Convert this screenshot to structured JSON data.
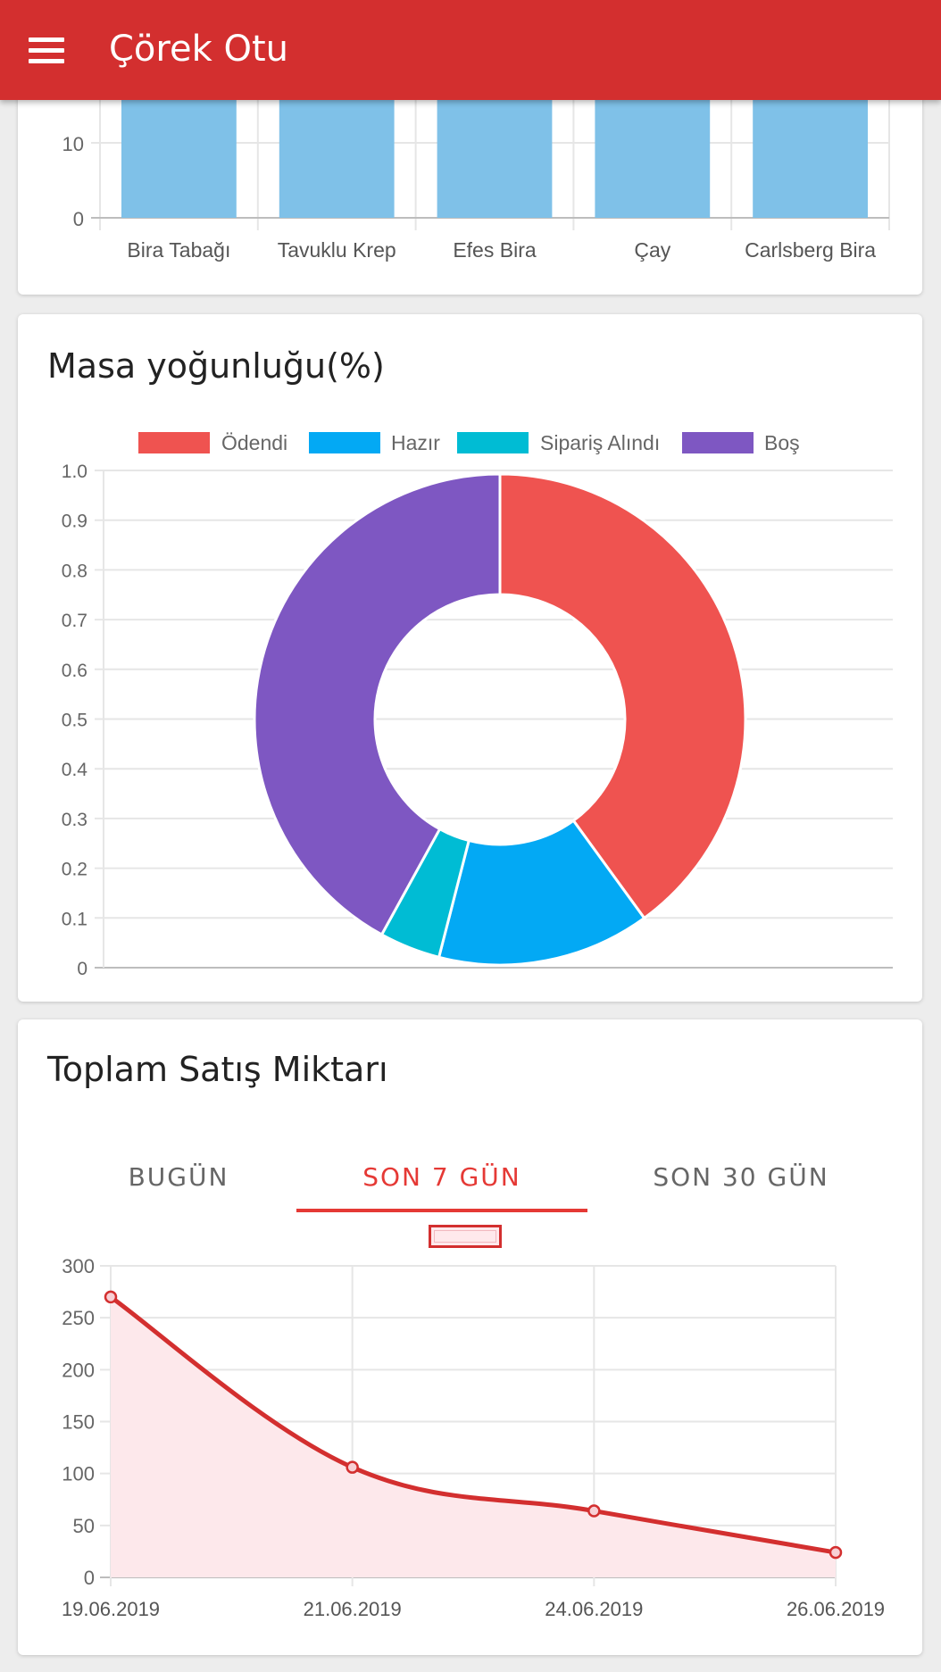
{
  "app": {
    "title": "Çörek Otu",
    "menu_icon": "hamburger-menu-icon"
  },
  "products_chart": {
    "chart_data": {
      "type": "bar",
      "categories": [
        "Bira Tabağı",
        "Tavuklu Krep",
        "Efes Bira",
        "Çay",
        "Carlsberg Bira"
      ],
      "values": [
        20,
        20,
        20,
        20,
        20
      ],
      "y_ticks": [
        "0",
        "10"
      ],
      "ylim": [
        0,
        20
      ],
      "color": "#7fc1e8",
      "grid": true
    }
  },
  "occupancy": {
    "title": "Masa yoğunluğu(%)",
    "chart_data": {
      "type": "pie",
      "labels": [
        "Ödendi",
        "Hazır",
        "Sipariş Alındı",
        "Boş"
      ],
      "values": [
        0.4,
        0.14,
        0.04,
        0.42
      ],
      "colors": [
        "#ef5350",
        "#03a9f4",
        "#00bcd4",
        "#7e57c2"
      ],
      "y_ticks": [
        "0",
        "0.1",
        "0.2",
        "0.3",
        "0.4",
        "0.5",
        "0.6",
        "0.7",
        "0.8",
        "0.9",
        "1.0"
      ],
      "legend": "top",
      "grid": true
    }
  },
  "sales": {
    "title": "Toplam Satış Miktarı",
    "tabs": [
      {
        "label": "BUGÜN",
        "active": false
      },
      {
        "label": "SON 7 GÜN",
        "active": true
      },
      {
        "label": "SON 30 GÜN",
        "active": false
      }
    ],
    "chart_data": {
      "type": "area",
      "x": [
        "19.06.2019",
        "21.06.2019",
        "24.06.2019",
        "26.06.2019"
      ],
      "values": [
        270,
        106,
        64,
        24
      ],
      "ylim": [
        0,
        300
      ],
      "y_ticks": [
        "0",
        "50",
        "100",
        "150",
        "200",
        "250",
        "300"
      ],
      "line_color": "#d32f2f",
      "fill_color": "#fde8eb",
      "grid": true
    }
  }
}
